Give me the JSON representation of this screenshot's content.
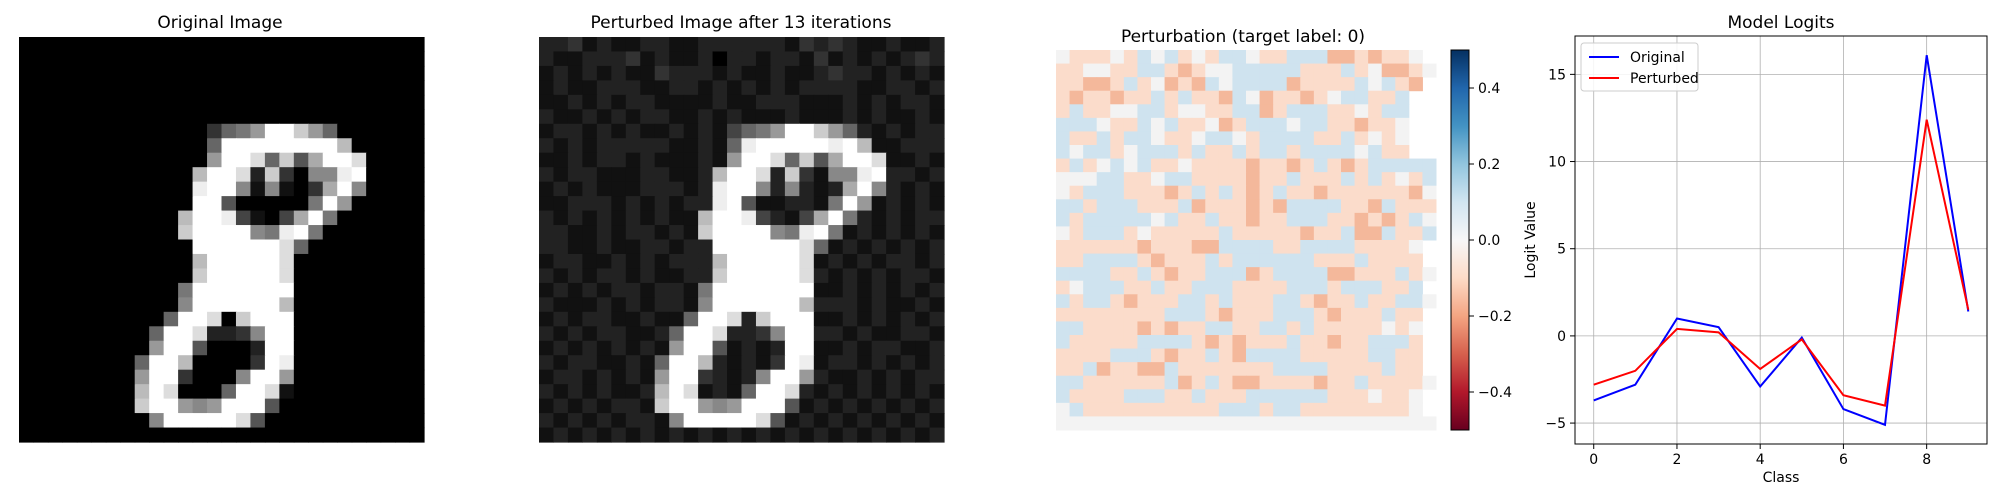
{
  "titles": {
    "original": "Original Image",
    "perturbed": "Perturbed Image after 13 iterations",
    "perturbation": "Perturbation (target label: 0)",
    "logits": "Model Logits"
  },
  "colorbar": {
    "ticks": [
      0.4,
      0.2,
      0.0,
      -0.2,
      -0.4
    ],
    "tick_labels": [
      "0.4",
      "0.2",
      "0.0",
      "−0.2",
      "−0.4"
    ],
    "range": [
      -0.5,
      0.5
    ],
    "colormap": "RdBu"
  },
  "images": {
    "original": {
      "type": "heatmap",
      "colormap": "gray",
      "rows": [
        "0000000000000000000000000000",
        "0000000000000000000000000000",
        "0000000000000000000000000000",
        "0000000000000000000000000000",
        "0000000000000000000000000000",
        "0000000000000000000000000000",
        "00000000000003679ffc96000000",
        "00000000000006ffffffffb00000",
        "00000000000009ffd6c5affd0000",
        "000000000000bffd2c3088ef0000",
        "000000000000eff818103af80000",
        "000000000000ff5000007f900000",
        "00000000000bffe4104af7000000",
        "00000000000cffff87ef70000000",
        "000000000000ffffffd600000000",
        "000000000000bfffffd000000000",
        "000000000000cfffffd000000000",
        "000000000007fffffff000000000",
        "000000000008ffffffb000000000",
        "00000000006ffd0cfff000000000",
        "0000000006ffd2238ff000000000",
        "0000000009ff50002ff000000000",
        "000000006ffb00003fe000000000",
        "000000009ff30008ff9000000000",
        "00000000bfd0006ffd1000000000",
        "00000000cff989fff50000000000",
        "0000000008fffffd500000000000",
        "0000000000000000000000000000"
      ]
    },
    "perturbed": {
      "type": "heatmap",
      "colormap": "gray",
      "rows": [
        "2231211221122222213232112112",
        "2112223121120221221312121232",
        "1212121132221211211232212121",
        "1211222112212121212222112212",
        "1121212211112112221112121221",
        "2112121221121211121112121121",
        "12212121121214679ffc96212122",
        "21212222211216efffffefb11222",
        "11212212111219ffd6c5affd1121",
        "212211122112bffd2c3188ef2212",
        "121211122212eff828212af82121",
        "112221212122ef5112217f912121",
        "21212121211bffe4214af7212122",
        "22112122121cffff87ef71212121",
        "221121122122ffffffd612121212",
        "122112121222bfffffd121212212",
        "212122121122cfffffd212121221",
        "121212212217fffffff112121212",
        "211121212218ffffffb222121121",
        "12122112116ffd2cfff112121212",
        "2121221126ffd2238ff221211221",
        "1212121219ff51212ff112122112",
        "212211216ffb21213fe122121212",
        "122121219ff32128ff9211212122",
        "21212112bfd1216ffd2121212121",
        "12121221cff989fff51212121212",
        "2121212218fffffd512121212121",
        "1212121212121212121212121212"
      ]
    },
    "perturbation": {
      "type": "heatmap",
      "colormap": "RdBu",
      "value_range": [
        -0.5,
        0.5
      ],
      "rows": [
        "0-1-1-10-1101-10-1110-1-1111-2-2-1-2-1-10",
        "-1-100-1-111-1-2-10011111-1-1-11-10-2-2-10",
        "-1-1-2-2-11-10-2-1-2101111-2-1-1-1-1101-1-2",
        "-1-2-1-1-2-1-11-11-1-1-210-2-1-1-2-1011-1-11",
        "-11-1-10011-100-1-111-2-1111-1-10-111",
        "1110-1-1101-1-10-2-1111011-1-1-2-1-10",
        "1-1-11-1110-1-10110-11111-1-11-10-10",
        "1011-10111-11-1-11-111-1111101-1-1",
        "-11-10101-1-10-1-1-1-1-2-1-1-2-11-1-2-111111",
        "00011-1-1011-1-1-1-1-2-1-11-1-1-11-11-10-11",
        "0-1111-1-1-1-2-11-11-1-2-11-1-1-2-1-1-1-1-1-1-20",
        "11-1111-1-1-11-2-1-1-1-2-1-21111-1-1-21-1-1-1",
        "1-11111101-1-11-1-1-2-1-1111-1-1-2-1-2-110",
        "0-1111-10-1-1-1-1-11-1-1-1-1-1-2-1-11-2-21-1-11",
        "-1-1-1-1-1-1-2-1-1-1-2-21111-1-11111-1-1-1-10",
        "-1-11111-1-2-1-1-11-1111111-1-1-11-1-1-1-1",
        "1111-1-11-1-2-1-1111-2-11111-2-2-1-1-11-10",
        "-10111-1-11-1-1111-1-1-1-1111-1111-1-11",
        "1-111-1-2-1-1-111-11-1-1-111-1-2-1-11-1-1110",
        "-1-1-1-1-1-1-1-1111-1-2-1-1-1111-1-2-1-1-11-1-1",
        "11-1-1-1-1-2-1-2-1-111-1-111-11-1-1-1-1-10-10",
        "1-1-1-1-1-11111-1-2-1-2-1-1-11-1-1-2-1-1111-1",
        "-1-1-1-1111-1-2-1-11-1-21111-1-1-1-1-111-1-1",
        "-1-11-2-1-1-2-21-1-1-1-1-1-1-11111-1-1-1-11-1-1",
        "11-1-1-1-1-1-11-2-11-1-2-2-1-1-1-1-2-1-11-1-1-1-10",
        "1-1-1-1-1111-1-11-1-1-1111111-1-1-10-1-10",
        "01-1-1-1-1-1-1-1-1-1-1111-111-1-1-1-1-1-1-1-10",
        "0000000000000000000000000000"
      ]
    }
  },
  "chart_data": {
    "type": "line",
    "title": "Model Logits",
    "xlabel": "Class",
    "ylabel": "Logit Value",
    "x": [
      0,
      1,
      2,
      3,
      4,
      5,
      6,
      7,
      8,
      9
    ],
    "xlim": [
      -0.45,
      9.45
    ],
    "ylim": [
      -6.2,
      17.2
    ],
    "xticks": [
      "0",
      "2",
      "4",
      "6",
      "8"
    ],
    "xtick_values": [
      0,
      2,
      4,
      6,
      8
    ],
    "yticks": [
      "−5",
      "0",
      "5",
      "10",
      "15"
    ],
    "ytick_values": [
      -5,
      0,
      5,
      10,
      15
    ],
    "grid": true,
    "legend_position": "top-left",
    "series": [
      {
        "name": "Original",
        "color": "#0000ff",
        "values": [
          -3.7,
          -2.8,
          1.0,
          0.5,
          -2.9,
          -0.1,
          -4.2,
          -5.1,
          16.1,
          1.4
        ]
      },
      {
        "name": "Perturbed",
        "color": "#ff0000",
        "values": [
          -2.8,
          -2.0,
          0.4,
          0.2,
          -1.9,
          -0.2,
          -3.4,
          -4.0,
          12.4,
          1.5
        ]
      }
    ]
  }
}
